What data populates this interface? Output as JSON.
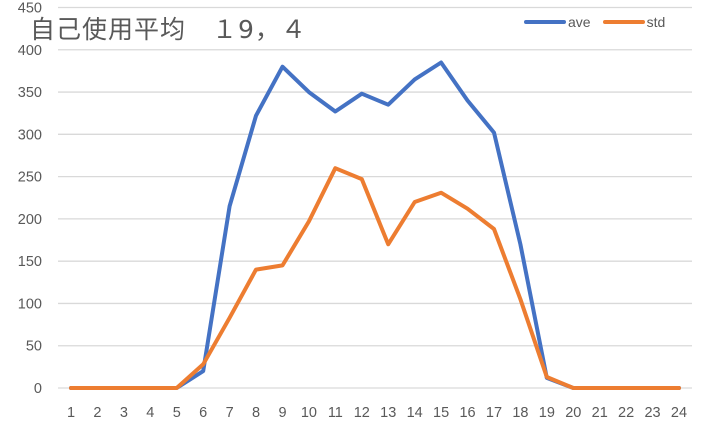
{
  "chart_data": {
    "type": "line",
    "title": "自己使用平均　１9，４",
    "xlabel": "",
    "ylabel": "",
    "ylim": [
      0,
      450
    ],
    "yticks": [
      0,
      50,
      100,
      150,
      200,
      250,
      300,
      350,
      400,
      450
    ],
    "categories": [
      "1",
      "2",
      "3",
      "4",
      "5",
      "6",
      "7",
      "8",
      "9",
      "10",
      "11",
      "12",
      "13",
      "14",
      "15",
      "16",
      "17",
      "18",
      "19",
      "20",
      "21",
      "22",
      "23",
      "24"
    ],
    "series": [
      {
        "name": "ave",
        "color": "#4472C4",
        "values": [
          0,
          0,
          0,
          0,
          0,
          20,
          215,
          322,
          380,
          350,
          327,
          348,
          335,
          365,
          385,
          340,
          302,
          170,
          12,
          0,
          0,
          0,
          0,
          0
        ]
      },
      {
        "name": "std",
        "color": "#ED7D31",
        "values": [
          0,
          0,
          0,
          0,
          0,
          28,
          83,
          140,
          145,
          197,
          260,
          247,
          170,
          220,
          231,
          212,
          188,
          105,
          13,
          0,
          0,
          0,
          0,
          0
        ]
      }
    ],
    "grid": true,
    "legend_position": "top-right"
  },
  "legend": {
    "items": [
      {
        "label": "ave",
        "color": "#4472C4"
      },
      {
        "label": "std",
        "color": "#ED7D31"
      }
    ]
  }
}
